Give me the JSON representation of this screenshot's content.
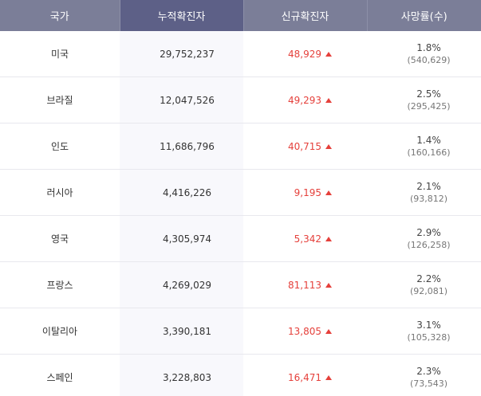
{
  "header": {
    "country": "국가",
    "cumulative": "누적확진자",
    "new_cases": "신규확진자",
    "death_rate": "사망률(수)"
  },
  "colors": {
    "header_bg": "#7b7e98",
    "header_active_bg": "#5d6087",
    "increase_red": "#e5403b"
  },
  "rows": [
    {
      "country": "미국",
      "cumulative": "29,752,237",
      "new_cases": "48,929",
      "death_rate": "1.8%",
      "deaths": "(540,629)"
    },
    {
      "country": "브라질",
      "cumulative": "12,047,526",
      "new_cases": "49,293",
      "death_rate": "2.5%",
      "deaths": "(295,425)"
    },
    {
      "country": "인도",
      "cumulative": "11,686,796",
      "new_cases": "40,715",
      "death_rate": "1.4%",
      "deaths": "(160,166)"
    },
    {
      "country": "러시아",
      "cumulative": "4,416,226",
      "new_cases": "9,195",
      "death_rate": "2.1%",
      "deaths": "(93,812)"
    },
    {
      "country": "영국",
      "cumulative": "4,305,974",
      "new_cases": "5,342",
      "death_rate": "2.9%",
      "deaths": "(126,258)"
    },
    {
      "country": "프랑스",
      "cumulative": "4,269,029",
      "new_cases": "81,113",
      "death_rate": "2.2%",
      "deaths": "(92,081)"
    },
    {
      "country": "이탈리아",
      "cumulative": "3,390,181",
      "new_cases": "13,805",
      "death_rate": "3.1%",
      "deaths": "(105,328)"
    },
    {
      "country": "스페인",
      "cumulative": "3,228,803",
      "new_cases": "16,471",
      "death_rate": "2.3%",
      "deaths": "(73,543)"
    }
  ]
}
